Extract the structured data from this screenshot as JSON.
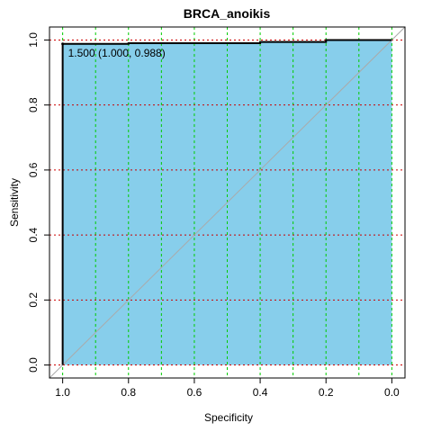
{
  "chart_data": {
    "type": "roc",
    "title": "BRCA_anoikis",
    "x_label": "Specificity",
    "y_label": "Sensitivity",
    "x": [
      1.0,
      1.0,
      0.8,
      0.8,
      0.4,
      0.4,
      0.2,
      0.2,
      0.0
    ],
    "values": [
      0.0,
      0.988,
      0.988,
      0.99,
      0.99,
      0.994,
      0.994,
      1.0,
      1.0
    ],
    "color": "#000000",
    "fill": "#87ceeb",
    "xlim": [
      1.04,
      -0.04
    ],
    "ylim": [
      -0.04,
      1.04
    ],
    "xticks": [
      {
        "value": 1.0,
        "label": "1.0"
      },
      {
        "value": 0.8,
        "label": "0.8"
      },
      {
        "value": 0.6,
        "label": "0.6"
      },
      {
        "value": 0.4,
        "label": "0.4"
      },
      {
        "value": 0.2,
        "label": "0.2"
      },
      {
        "value": 0.0,
        "label": "0.0"
      }
    ],
    "yticks": [
      {
        "value": 0.0,
        "label": "0.0"
      },
      {
        "value": 0.2,
        "label": "0.2"
      },
      {
        "value": 0.4,
        "label": "0.4"
      },
      {
        "value": 0.6,
        "label": "0.6"
      },
      {
        "value": 0.8,
        "label": "0.8"
      },
      {
        "value": 1.0,
        "label": "1.0"
      }
    ],
    "xgrid": [
      1.0,
      0.9,
      0.8,
      0.7,
      0.6,
      0.5,
      0.4,
      0.3,
      0.2,
      0.1,
      0.0
    ],
    "xgrid_color": "#00cc00",
    "ygrid_color": "#cc0000",
    "annotations": [
      {
        "text": "1.500 (1.000, 0.988)",
        "x": 1.0,
        "y": 0.988
      }
    ]
  }
}
